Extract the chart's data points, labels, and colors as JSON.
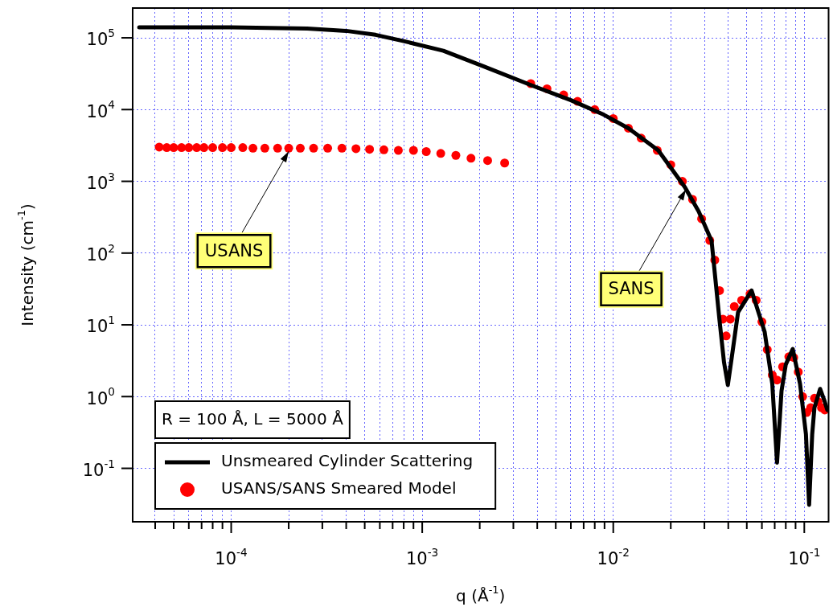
{
  "chart_data": {
    "type": "line",
    "xlabel": "q (Å$^{-1}$)",
    "ylabel": "Intensity (cm$^{-1}$)",
    "log": "xy",
    "grid": true,
    "legend": "bottom left",
    "marker": "circle",
    "xlim": [
      3.05e-05,
      0.134
    ],
    "ylim": [
      0.018,
      260000.0
    ],
    "xticks": [
      {
        "value": 4e-05,
        "label": null
      },
      {
        "value": 5e-05,
        "label": null
      },
      {
        "value": 6e-05,
        "label": null
      },
      {
        "value": 7e-05,
        "label": null
      },
      {
        "value": 8e-05,
        "label": null
      },
      {
        "value": 9e-05,
        "label": null
      },
      {
        "value": 0.0001,
        "label": "10$^{-4}$"
      },
      {
        "value": 0.0002,
        "label": null
      },
      {
        "value": 0.0003,
        "label": null
      },
      {
        "value": 0.0004,
        "label": null
      },
      {
        "value": 0.0005,
        "label": null
      },
      {
        "value": 0.0006,
        "label": null
      },
      {
        "value": 0.0007,
        "label": null
      },
      {
        "value": 0.0008,
        "label": null
      },
      {
        "value": 0.0009,
        "label": null
      },
      {
        "value": 0.001,
        "label": "10$^{-3}$"
      },
      {
        "value": 0.002,
        "label": null
      },
      {
        "value": 0.003,
        "label": null
      },
      {
        "value": 0.004,
        "label": null
      },
      {
        "value": 0.005,
        "label": null
      },
      {
        "value": 0.006,
        "label": null
      },
      {
        "value": 0.007,
        "label": null
      },
      {
        "value": 0.008,
        "label": null
      },
      {
        "value": 0.009,
        "label": null
      },
      {
        "value": 0.01,
        "label": "10$^{-2}$"
      },
      {
        "value": 0.02,
        "label": null
      },
      {
        "value": 0.03,
        "label": null
      },
      {
        "value": 0.04,
        "label": null
      },
      {
        "value": 0.05,
        "label": null
      },
      {
        "value": 0.06,
        "label": null
      },
      {
        "value": 0.07,
        "label": null
      },
      {
        "value": 0.08,
        "label": null
      },
      {
        "value": 0.09,
        "label": null
      },
      {
        "value": 0.1,
        "label": "10$^{-1}$"
      }
    ],
    "yticks": [
      {
        "value": 0.1,
        "label": "10$^{-1}$"
      },
      {
        "value": 1,
        "label": "10$^{0}$"
      },
      {
        "value": 10,
        "label": "10$^{1}$"
      },
      {
        "value": 100,
        "label": "10$^{2}$"
      },
      {
        "value": 1000,
        "label": "10$^{3}$"
      },
      {
        "value": 10000,
        "label": "10$^{4}$"
      },
      {
        "value": 100000,
        "label": "10$^{5}$"
      }
    ],
    "annotations": [
      "R = 100 Å, L = 5000 Å",
      {
        "text": "USANS",
        "x": 0.0002,
        "y": 2900
      },
      {
        "text": "SANS",
        "x": 0.024,
        "y": 850
      }
    ],
    "series": [
      {
        "name": "Unsmeared Cylinder Scattering",
        "type": "line",
        "marker": "none",
        "color": "#000000",
        "x": [
          3.3e-05,
          0.0001,
          0.00025,
          0.0004,
          0.00057,
          0.0008,
          0.00129,
          0.0021,
          0.0037,
          0.006,
          0.0089,
          0.012,
          0.0172,
          0.0237,
          0.028,
          0.0327,
          0.036,
          0.038,
          0.0398,
          0.042,
          0.045,
          0.053,
          0.062,
          0.068,
          0.072,
          0.076,
          0.08,
          0.087,
          0.095,
          0.102,
          0.106,
          0.11,
          0.113,
          0.121,
          0.127,
          0.132
        ],
        "values": [
          140000,
          140000,
          135000,
          125000,
          110000,
          90000,
          66000,
          40000,
          22000,
          13500,
          8500,
          5500,
          2700,
          830,
          380,
          148,
          11.5,
          3,
          1.45,
          4,
          15,
          30,
          8,
          1.5,
          0.12,
          1.2,
          2.8,
          4.6,
          1.5,
          0.3,
          0.031,
          0.3,
          0.7,
          1.28,
          0.9,
          0.65
        ]
      },
      {
        "name": "USANS/SANS Smeared Model",
        "type": "scatter",
        "color": "#ff0000",
        "x": [
          4.2e-05,
          4.6e-05,
          5e-05,
          5.5e-05,
          6e-05,
          6.6e-05,
          7.2e-05,
          8e-05,
          9e-05,
          0.0001,
          0.000115,
          0.00013,
          0.00015,
          0.000175,
          0.0002,
          0.00023,
          0.00027,
          0.00032,
          0.00038,
          0.00045,
          0.00053,
          0.00063,
          0.00075,
          0.0009,
          0.00105,
          0.00125,
          0.0015,
          0.0018,
          0.0022,
          0.0027,
          0.0037,
          0.0045,
          0.0055,
          0.0065,
          0.008,
          0.01,
          0.012,
          0.014,
          0.017,
          0.02,
          0.023,
          0.026,
          0.029,
          0.032,
          0.034,
          0.036,
          0.0375,
          0.039,
          0.041,
          0.043,
          0.047,
          0.052,
          0.056,
          0.06,
          0.064,
          0.068,
          0.072,
          0.077,
          0.083,
          0.088,
          0.093,
          0.098,
          0.103,
          0.108,
          0.113,
          0.118,
          0.123,
          0.128
        ],
        "values": [
          3000,
          2950,
          2950,
          2950,
          2950,
          2950,
          2950,
          2950,
          2950,
          2950,
          2950,
          2900,
          2900,
          2900,
          2900,
          2900,
          2900,
          2900,
          2900,
          2850,
          2800,
          2750,
          2700,
          2700,
          2600,
          2450,
          2300,
          2100,
          1950,
          1800,
          23000,
          19500,
          16000,
          13000,
          10000,
          7500,
          5500,
          4000,
          2700,
          1700,
          1000,
          560,
          300,
          150,
          80,
          30,
          12,
          7,
          12,
          18,
          22,
          27,
          22,
          11,
          4.5,
          2,
          1.7,
          2.6,
          3.6,
          3.5,
          2.2,
          1,
          0.6,
          0.7,
          0.95,
          0.85,
          0.7,
          0.65
        ]
      }
    ]
  }
}
